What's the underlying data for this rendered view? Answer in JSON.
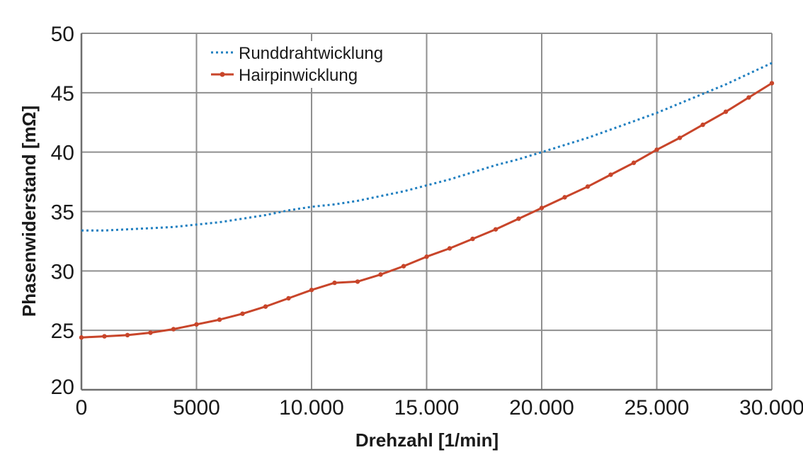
{
  "chart_data": {
    "type": "line",
    "title": "",
    "xlabel": "Drehzahl [1/min]",
    "ylabel": "Phasenwiderstand [mΩ]",
    "xlim": [
      0,
      30000
    ],
    "ylim": [
      20,
      50
    ],
    "x_ticks": [
      0,
      5000,
      10000,
      15000,
      20000,
      25000,
      30000
    ],
    "x_tick_labels": [
      "0",
      "5000",
      "10.000",
      "15.000",
      "20.000",
      "25.000",
      "30.000"
    ],
    "y_ticks": [
      20,
      25,
      30,
      35,
      40,
      45,
      50
    ],
    "y_tick_labels": [
      "20",
      "25",
      "30",
      "35",
      "40",
      "45",
      "50"
    ],
    "grid": true,
    "legend_position": "top-left",
    "series": [
      {
        "name": "Runddrahtwicklung",
        "style": "dotted",
        "color": "#1f7fc0",
        "x": [
          0,
          1000,
          2000,
          3000,
          4000,
          5000,
          6000,
          7000,
          8000,
          9000,
          10000,
          11000,
          12000,
          13000,
          14000,
          15000,
          16000,
          17000,
          18000,
          19000,
          20000,
          21000,
          22000,
          23000,
          24000,
          25000,
          26000,
          27000,
          28000,
          29000,
          30000
        ],
        "y": [
          33.4,
          33.4,
          33.5,
          33.6,
          33.7,
          33.9,
          34.1,
          34.4,
          34.7,
          35.1,
          35.4,
          35.6,
          35.9,
          36.3,
          36.7,
          37.2,
          37.7,
          38.3,
          38.9,
          39.4,
          40.0,
          40.6,
          41.2,
          41.9,
          42.6,
          43.3,
          44.1,
          44.9,
          45.7,
          46.6,
          47.5
        ]
      },
      {
        "name": "Hairpinwicklung",
        "style": "solid-markers",
        "color": "#c8452a",
        "x": [
          0,
          1000,
          2000,
          3000,
          4000,
          5000,
          6000,
          7000,
          8000,
          9000,
          10000,
          11000,
          12000,
          13000,
          14000,
          15000,
          16000,
          17000,
          18000,
          19000,
          20000,
          21000,
          22000,
          23000,
          24000,
          25000,
          26000,
          27000,
          28000,
          29000,
          30000
        ],
        "y": [
          24.4,
          24.5,
          24.6,
          24.8,
          25.1,
          25.5,
          25.9,
          26.4,
          27.0,
          27.7,
          28.4,
          29.0,
          29.1,
          29.7,
          30.4,
          31.2,
          31.9,
          32.7,
          33.5,
          34.4,
          35.3,
          36.2,
          37.1,
          38.1,
          39.1,
          40.2,
          41.2,
          42.3,
          43.4,
          44.6,
          45.8
        ]
      }
    ]
  }
}
